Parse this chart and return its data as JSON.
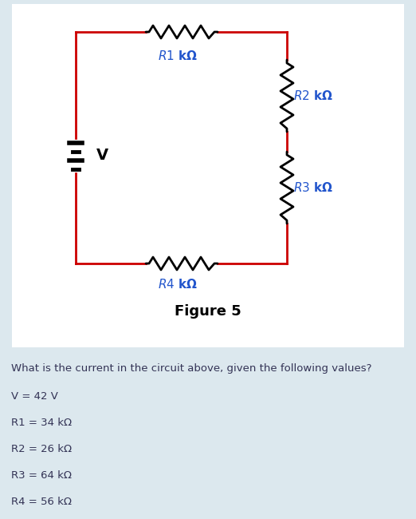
{
  "bg_color": "#dce8ee",
  "panel_color": "#ffffff",
  "circuit_color": "#cc0000",
  "wire_color": "#000000",
  "figure_label": "Figure 5",
  "question_text": "What is the current in the circuit above, given the following values?",
  "values": [
    "V = 42 V",
    "R1 = 34 kΩ",
    "R2 = 26 kΩ",
    "R3 = 64 kΩ",
    "R4 = 56 kΩ"
  ],
  "label_color": "#2255cc",
  "text_color": "#333355"
}
